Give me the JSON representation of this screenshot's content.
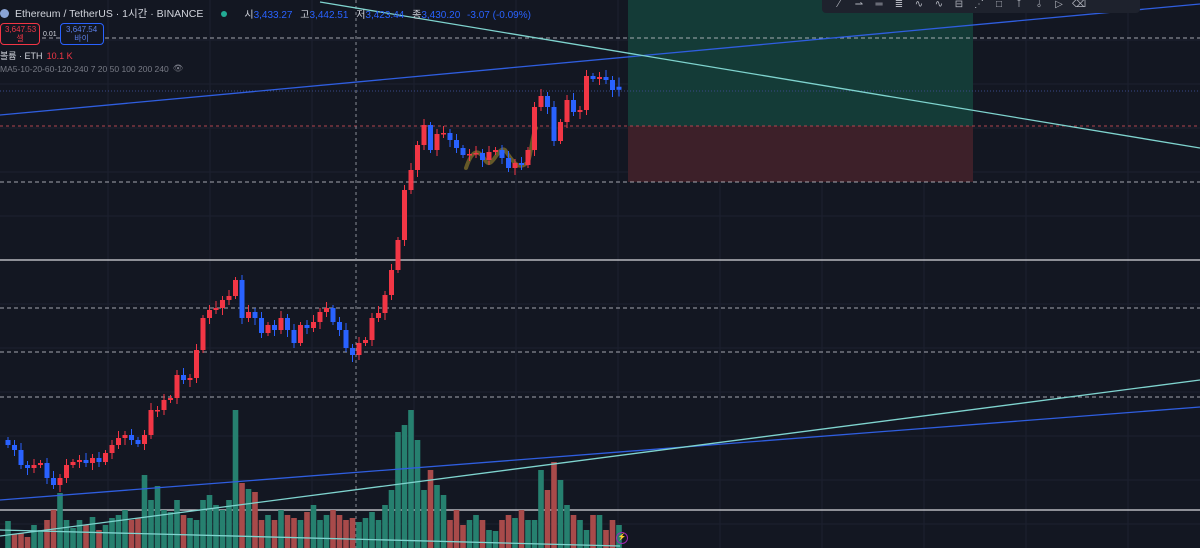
{
  "header": {
    "symbol_title": "Ethereum / TetherUS · 1시간 · BINANCE",
    "status_color": "#22ab94",
    "ohlc": {
      "open_label": "시",
      "open": "3,433.27",
      "high_label": "고",
      "high": "3,442.51",
      "low_label": "저",
      "low": "3,423.44",
      "close_label": "종",
      "close": "3,430.20",
      "change": "-3.07 (-0.09%)"
    }
  },
  "trade_buttons": {
    "sell_price": "3,647.53",
    "sell_label": "셀",
    "spread": "0.01",
    "buy_price": "3,647.54",
    "buy_label": "바이"
  },
  "volume_legend": {
    "label": "볼륨 · ETH",
    "value": "10.1 K"
  },
  "ma_legend": {
    "label": "MA5-10-20-60-120-240 7 20 50 100 200 240",
    "icon": "eye-icon"
  },
  "toolbar": {
    "icons": [
      "line-icon",
      "ray-icon",
      "parallel-channel-icon",
      "fib-icon",
      "pattern-icon",
      "zigzag-icon",
      "price-range-icon",
      "date-range-icon",
      "rectangle-icon",
      "measure-icon",
      "anchor-icon",
      "brush-icon",
      "eraser-icon"
    ]
  },
  "colors": {
    "up": "#f23645",
    "down": "#2962ff",
    "vol_up": "#26806f",
    "vol_down": "#a84a4a",
    "background": "#131722"
  },
  "chart_data": {
    "type": "candlestick",
    "series_count": 95,
    "close": [
      3075,
      3070,
      3055,
      3052,
      3055,
      3057,
      3042,
      3035,
      3042,
      3055,
      3058,
      3060,
      3057,
      3062,
      3058,
      3067,
      3075,
      3082,
      3085,
      3080,
      3076,
      3085,
      3110,
      3110,
      3120,
      3122,
      3145,
      3140,
      3142,
      3170,
      3202,
      3210,
      3212,
      3220,
      3224,
      3240,
      3202,
      3208,
      3202,
      3187,
      3195,
      3190,
      3202,
      3190,
      3177,
      3195,
      3192,
      3198,
      3208,
      3212,
      3198,
      3190,
      3172,
      3165,
      3177,
      3180,
      3202,
      3207,
      3225,
      3250,
      3280,
      3330,
      3350,
      3375,
      3395,
      3370,
      3386,
      3387,
      3380,
      3372,
      3365,
      3366,
      3367,
      3360,
      3368,
      3370,
      3362,
      3352,
      3357,
      3355,
      3370,
      3413,
      3424,
      3413,
      3379,
      3398,
      3420,
      3408,
      3410,
      3444,
      3441,
      3443,
      3440,
      3430,
      3430.2
    ],
    "volume": [
      27,
      14,
      15,
      11,
      23,
      18,
      28,
      38,
      55,
      28,
      20,
      28,
      23,
      31,
      18,
      23,
      30,
      33,
      38,
      28,
      30,
      73,
      48,
      62,
      38,
      36,
      48,
      33,
      30,
      28,
      48,
      53,
      43,
      38,
      48,
      138,
      65,
      59,
      56,
      28,
      33,
      28,
      38,
      33,
      30,
      28,
      36,
      43,
      28,
      33,
      38,
      33,
      28,
      30,
      26,
      30,
      36,
      28,
      43,
      58,
      116,
      123,
      138,
      108,
      58,
      78,
      63,
      53,
      28,
      38,
      23,
      28,
      33,
      28,
      18,
      17,
      28,
      33,
      30,
      38,
      28,
      28,
      78,
      58,
      86,
      68,
      43,
      33,
      28,
      18,
      33,
      33,
      18,
      28,
      23
    ],
    "last_candle": {
      "open": 3433.27,
      "high": 3442.51,
      "low": 3423.44,
      "close": 3430.2
    },
    "grid": true
  }
}
